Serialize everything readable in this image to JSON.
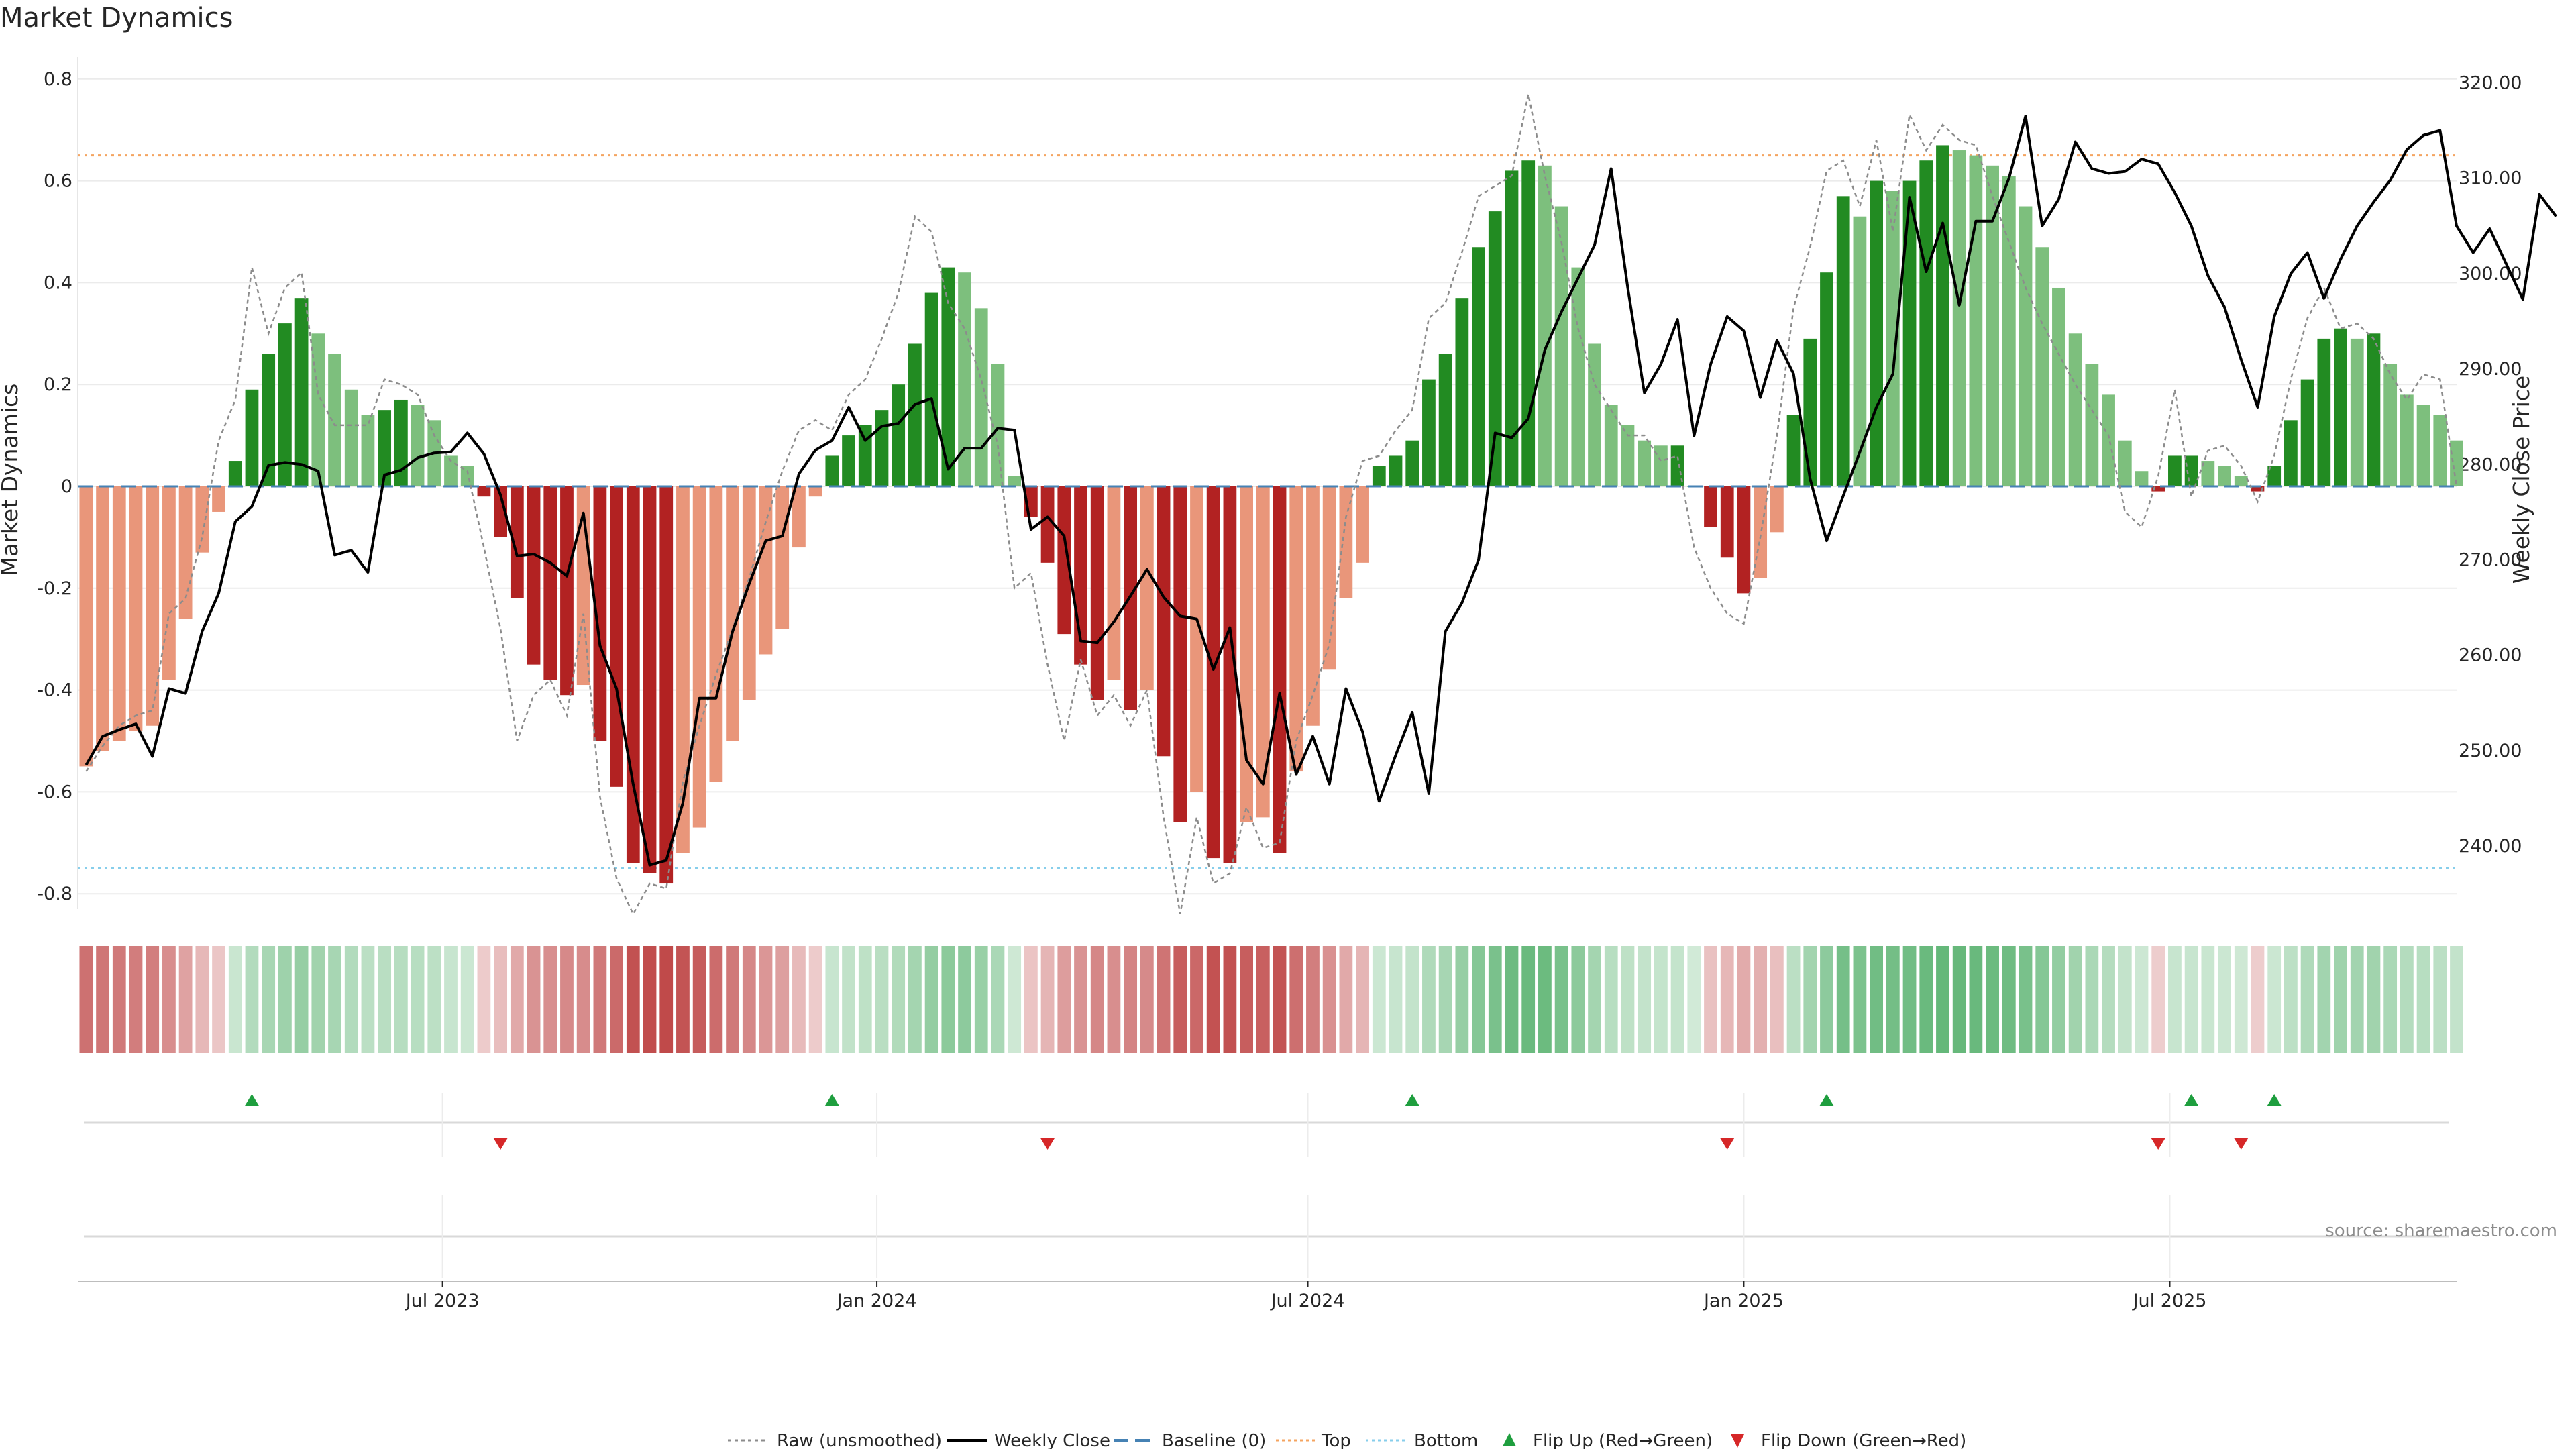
{
  "chart_data": {
    "type": "bar",
    "title": "Market Dynamics",
    "ylabel_left": "Market Dynamics",
    "ylabel_right": "Weekly Close Price",
    "source": "source: sharemaestro.com",
    "left_ylim": [
      -0.83,
      0.83
    ],
    "right_ylim": [
      233.4,
      322.0
    ],
    "left_ticks": [
      "0.8",
      "0.6",
      "0.4",
      "0.2",
      "0",
      "-0.2",
      "-0.4",
      "-0.6",
      "-0.8"
    ],
    "left_tick_values": [
      0.8,
      0.6,
      0.4,
      0.2,
      0,
      -0.2,
      -0.4,
      -0.6,
      -0.8
    ],
    "right_ticks": [
      "320.00",
      "310.00",
      "300.00",
      "290.00",
      "280.00",
      "270.00",
      "260.00",
      "250.00",
      "240.00"
    ],
    "right_tick_values": [
      320,
      310,
      300,
      290,
      280,
      270,
      260,
      250,
      240
    ],
    "x_ticks": [
      {
        "label": "Jul 2023",
        "week": 21.5
      },
      {
        "label": "Jan 2024",
        "week": 47.7
      },
      {
        "label": "Jul 2024",
        "week": 73.7
      },
      {
        "label": "Jan 2025",
        "week": 100.0
      },
      {
        "label": "Jul 2025",
        "week": 125.7
      }
    ],
    "top_level": 0.65,
    "bottom_level": -0.75,
    "baseline": 0,
    "grid": true,
    "legend_position": "bottom-center",
    "legend": [
      "Raw (unsmoothed)",
      "Weekly Close",
      "Baseline (0)",
      "Top",
      "Bottom",
      "Flip Up (Red→Green)",
      "Flip Down (Green→Red)"
    ],
    "colors": {
      "strong_green": "#228B22",
      "light_green": "#7DBF7D",
      "strong_red": "#B22222",
      "light_red": "#E9967A",
      "close_line": "#000000",
      "raw_line": "#8c8c8c",
      "baseline": "#4682B4",
      "top": "#F4A460",
      "bottom": "#87CEEB",
      "flip_up": "#1E9E3E",
      "flip_down": "#D62728"
    },
    "dynamics": [
      -0.55,
      -0.52,
      -0.5,
      -0.48,
      -0.47,
      -0.38,
      -0.26,
      -0.13,
      -0.05,
      0.05,
      0.19,
      0.26,
      0.32,
      0.37,
      0.3,
      0.26,
      0.19,
      0.14,
      0.15,
      0.17,
      0.16,
      0.13,
      0.06,
      0.04,
      -0.02,
      -0.1,
      -0.22,
      -0.35,
      -0.38,
      -0.41,
      -0.39,
      -0.5,
      -0.59,
      -0.74,
      -0.76,
      -0.78,
      -0.72,
      -0.67,
      -0.58,
      -0.5,
      -0.42,
      -0.33,
      -0.28,
      -0.12,
      -0.02,
      0.06,
      0.1,
      0.12,
      0.15,
      0.2,
      0.28,
      0.38,
      0.43,
      0.42,
      0.35,
      0.24,
      0.02,
      -0.06,
      -0.15,
      -0.29,
      -0.35,
      -0.42,
      -0.38,
      -0.44,
      -0.4,
      -0.53,
      -0.66,
      -0.6,
      -0.73,
      -0.74,
      -0.66,
      -0.65,
      -0.72,
      -0.56,
      -0.47,
      -0.36,
      -0.22,
      -0.15,
      0.04,
      0.06,
      0.09,
      0.21,
      0.26,
      0.37,
      0.47,
      0.54,
      0.62,
      0.64,
      0.63,
      0.55,
      0.43,
      0.28,
      0.16,
      0.12,
      0.09,
      0.08,
      0.08,
      0.0,
      -0.08,
      -0.14,
      -0.21,
      -0.18,
      -0.09,
      0.14,
      0.29,
      0.42,
      0.57,
      0.53,
      0.6,
      0.58,
      0.6,
      0.64,
      0.67,
      0.66,
      0.65,
      0.63,
      0.61,
      0.55,
      0.47,
      0.39,
      0.3,
      0.24,
      0.18,
      0.09,
      0.03,
      -0.01,
      0.06,
      0.06,
      0.05,
      0.04,
      0.02,
      -0.01,
      0.04,
      0.13,
      0.21,
      0.29,
      0.31,
      0.29,
      0.3,
      0.24,
      0.18,
      0.16,
      0.14,
      0.09
    ],
    "weekly_close": [
      248.5,
      251.5,
      252.2,
      252.8,
      249.4,
      256.5,
      256.0,
      262.5,
      266.5,
      274.0,
      275.6,
      279.9,
      280.2,
      280.0,
      279.3,
      270.5,
      271.0,
      268.7,
      278.9,
      279.4,
      280.7,
      281.2,
      281.3,
      283.3,
      281.1,
      276.8,
      270.4,
      270.6,
      269.7,
      268.3,
      274.9,
      261.0,
      256.5,
      246.5,
      238.0,
      238.5,
      244.5,
      255.5,
      255.5,
      262.5,
      267.5,
      272.0,
      272.5,
      279.0,
      281.5,
      282.5,
      286.0,
      282.5,
      284.0,
      284.3,
      286.3,
      286.9,
      279.5,
      281.7,
      281.7,
      283.8,
      283.6,
      273.2,
      274.5,
      272.5,
      261.5,
      261.3,
      263.5,
      266.2,
      269.0,
      266.1,
      264.1,
      263.8,
      258.5,
      262.9,
      249.0,
      246.5,
      256.0,
      247.5,
      251.5,
      246.5,
      256.5,
      252.0,
      244.7,
      249.5,
      254.0,
      245.5,
      262.5,
      265.5,
      270.0,
      283.3,
      282.8,
      284.8,
      292.0,
      296.0,
      299.5,
      303.0,
      311.0,
      298.5,
      287.5,
      290.5,
      295.2,
      283.0,
      290.5,
      295.5,
      294.0,
      287.0,
      293.0,
      289.5,
      278.5,
      272.0,
      276.7,
      281.3,
      286.0,
      289.5,
      308.0,
      300.2,
      305.3,
      296.7,
      305.5,
      305.5,
      310.0,
      316.5,
      305.0,
      307.8,
      313.8,
      311.0,
      310.5,
      310.7,
      312.0,
      311.5,
      308.5,
      305.0,
      299.8,
      296.5,
      291.0,
      286.0,
      295.5,
      300.0,
      302.2,
      297.4,
      301.5,
      305.0,
      307.5,
      309.8,
      313.0,
      314.5,
      315.0,
      305.0,
      302.2,
      304.7,
      301.0,
      297.3,
      308.3,
      306.0
    ],
    "raw": [
      -0.56,
      -0.51,
      -0.47,
      -0.45,
      -0.44,
      -0.25,
      -0.22,
      -0.1,
      0.09,
      0.17,
      0.43,
      0.3,
      0.39,
      0.42,
      0.18,
      0.12,
      0.12,
      0.12,
      0.21,
      0.2,
      0.18,
      0.1,
      0.05,
      0.03,
      -0.12,
      -0.28,
      -0.5,
      -0.41,
      -0.38,
      -0.45,
      -0.25,
      -0.61,
      -0.77,
      -0.84,
      -0.78,
      -0.79,
      -0.58,
      -0.47,
      -0.37,
      -0.28,
      -0.18,
      -0.07,
      0.03,
      0.11,
      0.13,
      0.11,
      0.18,
      0.21,
      0.29,
      0.38,
      0.53,
      0.5,
      0.36,
      0.31,
      0.21,
      0.08,
      -0.2,
      -0.17,
      -0.35,
      -0.5,
      -0.34,
      -0.45,
      -0.41,
      -0.47,
      -0.4,
      -0.65,
      -0.84,
      -0.65,
      -0.78,
      -0.76,
      -0.63,
      -0.71,
      -0.7,
      -0.5,
      -0.41,
      -0.31,
      -0.06,
      0.05,
      0.06,
      0.11,
      0.15,
      0.33,
      0.36,
      0.46,
      0.57,
      0.59,
      0.61,
      0.77,
      0.61,
      0.48,
      0.31,
      0.2,
      0.15,
      0.1,
      0.1,
      0.05,
      0.06,
      -0.12,
      -0.2,
      -0.25,
      -0.27,
      -0.1,
      0.1,
      0.35,
      0.47,
      0.62,
      0.64,
      0.55,
      0.68,
      0.5,
      0.73,
      0.66,
      0.71,
      0.68,
      0.67,
      0.57,
      0.48,
      0.39,
      0.32,
      0.26,
      0.2,
      0.15,
      0.1,
      -0.05,
      -0.08,
      0.02,
      0.19,
      -0.02,
      0.07,
      0.08,
      0.04,
      -0.03,
      0.06,
      0.21,
      0.33,
      0.39,
      0.31,
      0.32,
      0.29,
      0.22,
      0.17,
      0.22,
      0.21,
      0.0
    ],
    "flip_up_weeks": [
      10,
      45,
      80,
      105,
      127,
      132
    ],
    "flip_down_weeks": [
      25,
      58,
      99,
      125,
      130
    ]
  }
}
